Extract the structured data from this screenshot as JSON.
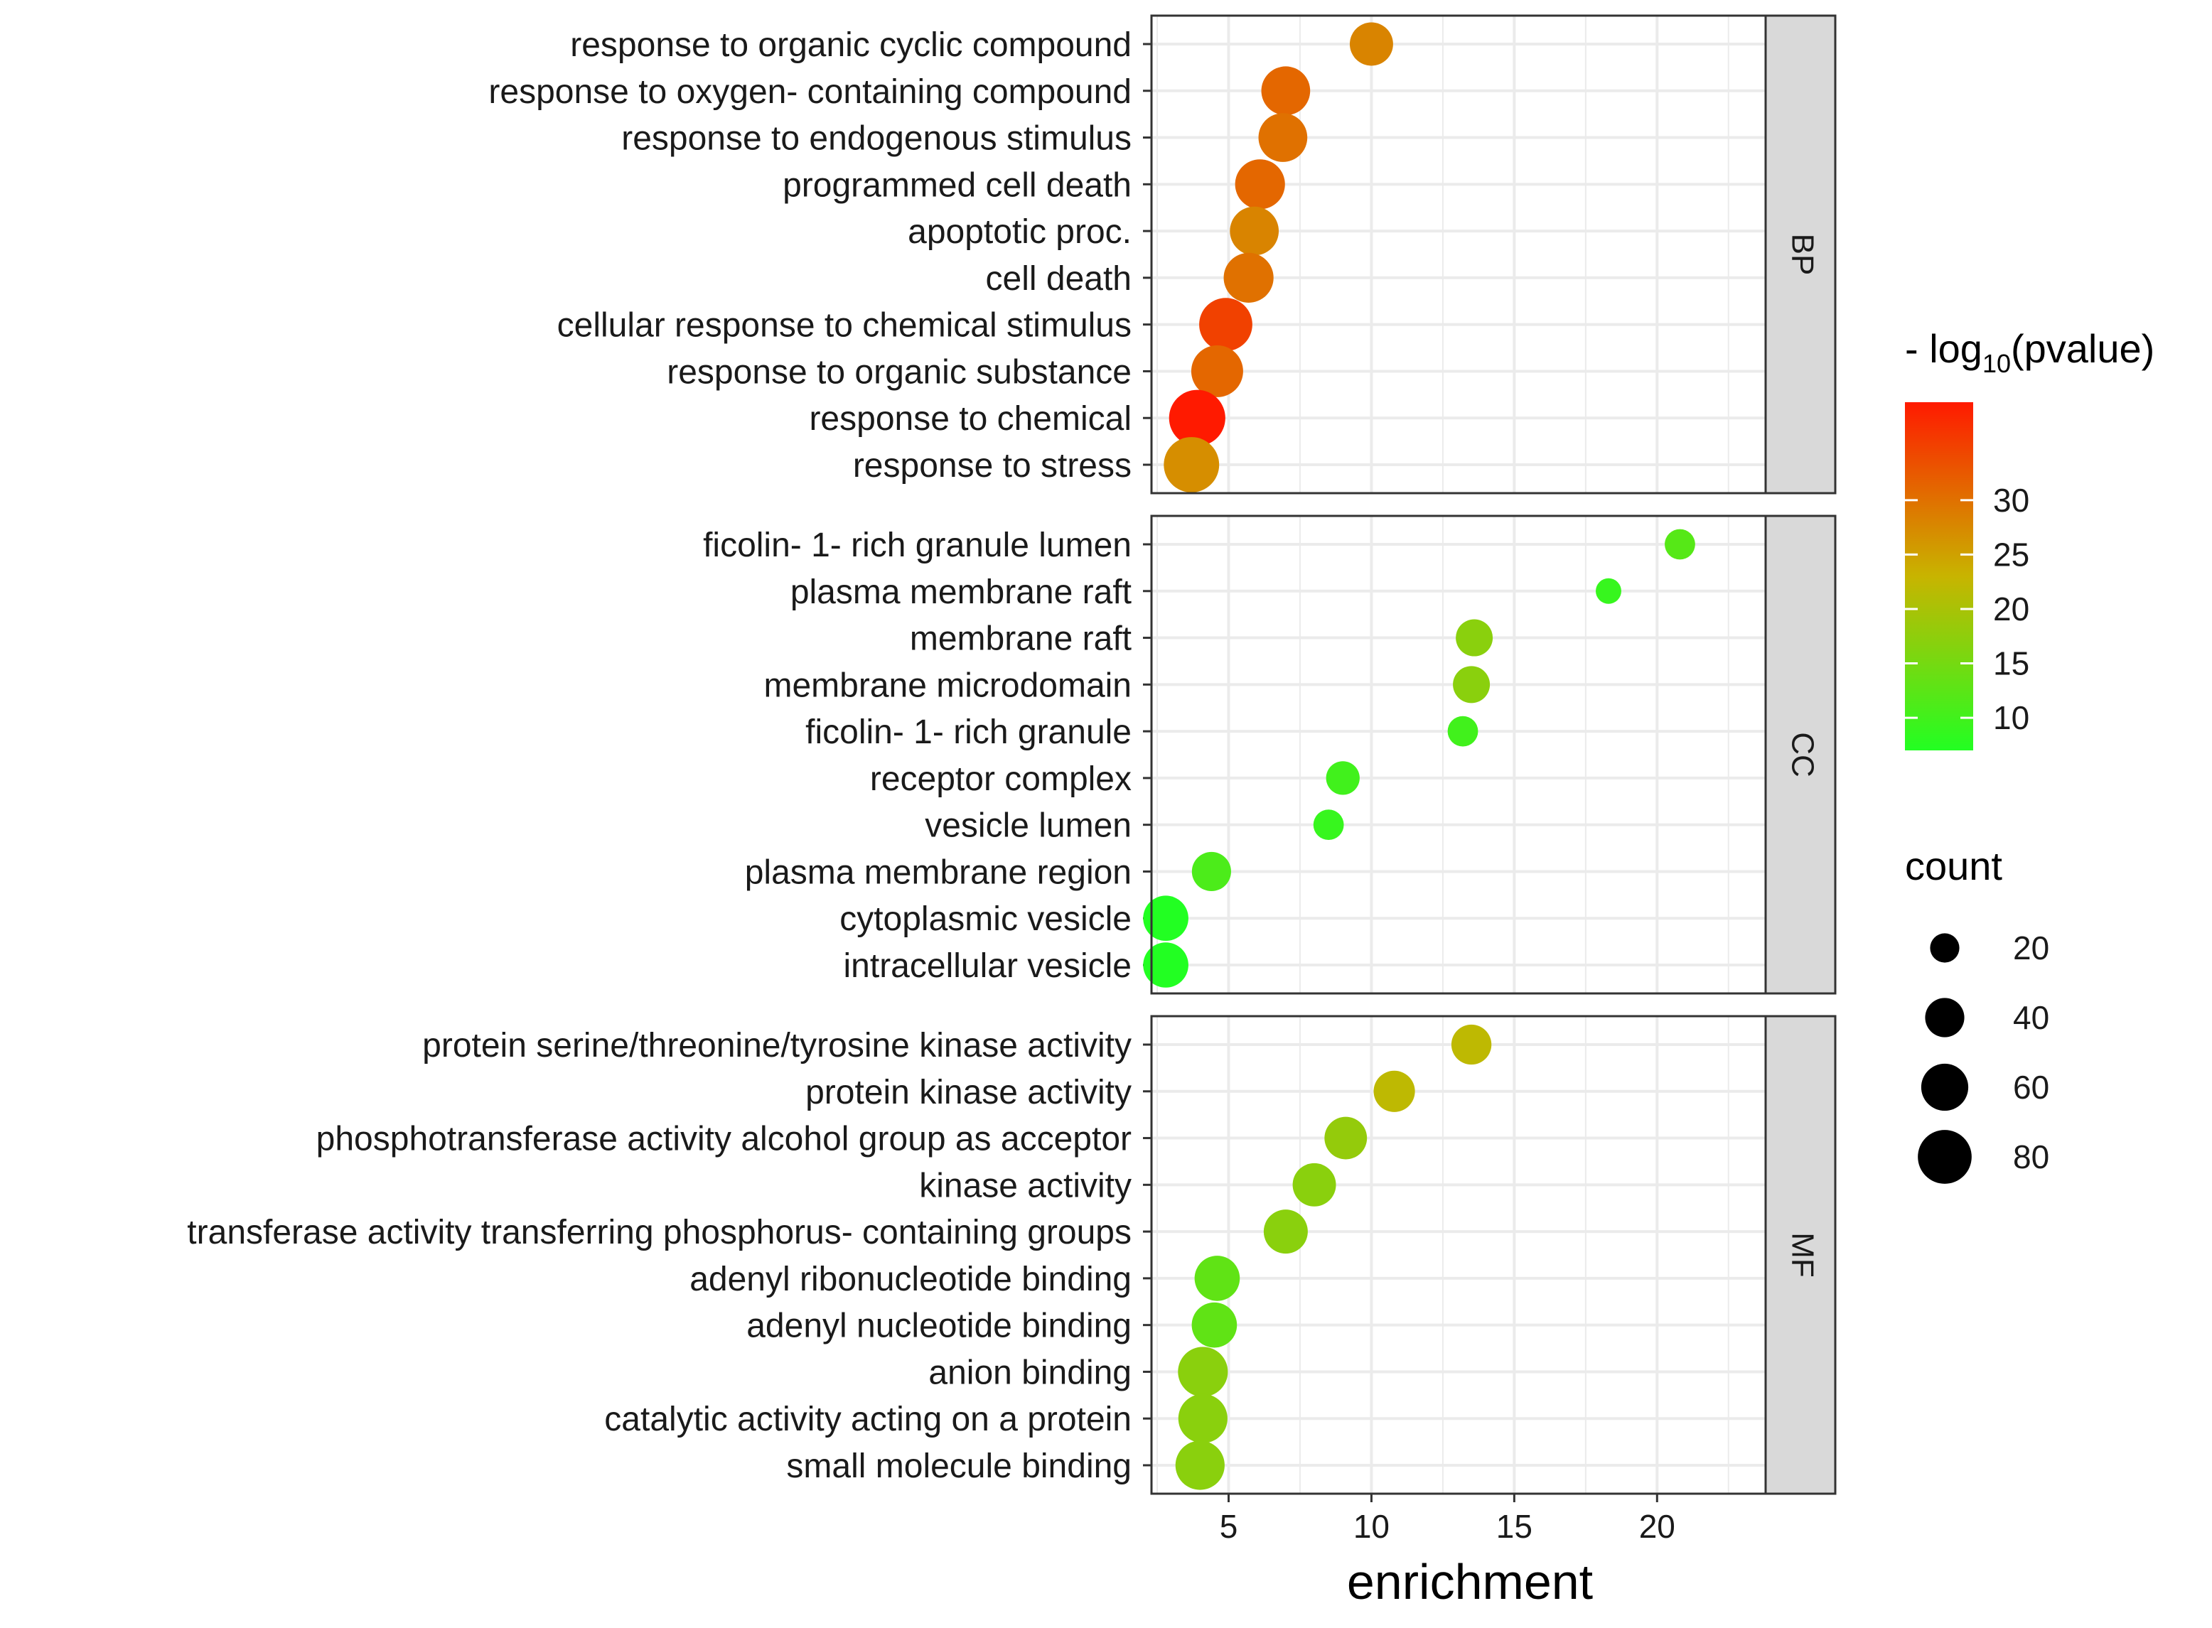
{
  "chart_data": {
    "type": "scatter",
    "xlabel": "enrichment",
    "xlim": [
      2.3,
      23.8
    ],
    "xticks": [
      5,
      10,
      15,
      20
    ],
    "color_legend": {
      "title_prefix": "- log",
      "title_sub": "10",
      "title_suffix": "(pvalue)",
      "range": [
        7,
        39
      ],
      "ticks": [
        10,
        15,
        20,
        25,
        30
      ],
      "low_color": "#22ff22",
      "mid_color": "#c8b400",
      "high_color": "#ff1a00",
      "placement": "right"
    },
    "size_legend": {
      "title": "count",
      "range": [
        10,
        90
      ],
      "values": [
        20,
        40,
        60,
        80
      ],
      "placement": "right"
    },
    "panels": [
      {
        "name": "BP",
        "terms": [
          {
            "label": "response to organic cyclic compound",
            "enrichment": 10.0,
            "neglog10p": 28,
            "count": 50
          },
          {
            "label": "response to oxygen- containing compound",
            "enrichment": 7.0,
            "neglog10p": 31,
            "count": 65
          },
          {
            "label": "response to endogenous stimulus",
            "enrichment": 6.9,
            "neglog10p": 30,
            "count": 65
          },
          {
            "label": "programmed cell death",
            "enrichment": 6.1,
            "neglog10p": 31,
            "count": 68
          },
          {
            "label": "apoptotic proc.",
            "enrichment": 5.9,
            "neglog10p": 28,
            "count": 65
          },
          {
            "label": "cell death",
            "enrichment": 5.7,
            "neglog10p": 30,
            "count": 68
          },
          {
            "label": "cellular response to chemical stimulus",
            "enrichment": 4.9,
            "neglog10p": 35,
            "count": 78
          },
          {
            "label": "response to organic substance",
            "enrichment": 4.6,
            "neglog10p": 31,
            "count": 74
          },
          {
            "label": "response to chemical",
            "enrichment": 3.9,
            "neglog10p": 39,
            "count": 88
          },
          {
            "label": "response to stress",
            "enrichment": 3.7,
            "neglog10p": 27,
            "count": 85
          }
        ]
      },
      {
        "name": "CC",
        "terms": [
          {
            "label": "ficolin- 1- rich granule lumen",
            "enrichment": 20.8,
            "neglog10p": 12,
            "count": 22
          },
          {
            "label": "plasma membrane raft",
            "enrichment": 18.3,
            "neglog10p": 9,
            "count": 14
          },
          {
            "label": "membrane raft",
            "enrichment": 13.6,
            "neglog10p": 17,
            "count": 35
          },
          {
            "label": "membrane microdomain",
            "enrichment": 13.5,
            "neglog10p": 17,
            "count": 35
          },
          {
            "label": "ficolin- 1- rich granule",
            "enrichment": 13.2,
            "neglog10p": 10,
            "count": 22
          },
          {
            "label": "receptor complex",
            "enrichment": 9.0,
            "neglog10p": 10,
            "count": 28
          },
          {
            "label": "vesicle lumen",
            "enrichment": 8.5,
            "neglog10p": 9,
            "count": 22
          },
          {
            "label": "plasma membrane region",
            "enrichment": 4.4,
            "neglog10p": 11,
            "count": 40
          },
          {
            "label": "cytoplasmic vesicle",
            "enrichment": 2.8,
            "neglog10p": 7,
            "count": 55
          },
          {
            "label": "intracellular vesicle",
            "enrichment": 2.8,
            "neglog10p": 7,
            "count": 55
          }
        ]
      },
      {
        "name": "MF",
        "terms": [
          {
            "label": "protein serine/threonine/tyrosine kinase activity",
            "enrichment": 13.5,
            "neglog10p": 22,
            "count": 42
          },
          {
            "label": "protein kinase activity",
            "enrichment": 10.8,
            "neglog10p": 22,
            "count": 45
          },
          {
            "label": "phosphotransferase activity alcohol group as acceptor",
            "enrichment": 9.1,
            "neglog10p": 18,
            "count": 48
          },
          {
            "label": "kinase activity",
            "enrichment": 8.0,
            "neglog10p": 17,
            "count": 50
          },
          {
            "label": "transferase activity transferring phosphorus- containing groups",
            "enrichment": 7.0,
            "neglog10p": 17,
            "count": 52
          },
          {
            "label": "adenyl ribonucleotide binding",
            "enrichment": 4.6,
            "neglog10p": 13,
            "count": 55
          },
          {
            "label": "adenyl nucleotide binding",
            "enrichment": 4.5,
            "neglog10p": 13,
            "count": 55
          },
          {
            "label": "anion binding",
            "enrichment": 4.1,
            "neglog10p": 17,
            "count": 68
          },
          {
            "label": "catalytic activity acting on a protein",
            "enrichment": 4.1,
            "neglog10p": 17,
            "count": 66
          },
          {
            "label": "small molecule binding",
            "enrichment": 4.0,
            "neglog10p": 17,
            "count": 66
          }
        ]
      }
    ]
  }
}
